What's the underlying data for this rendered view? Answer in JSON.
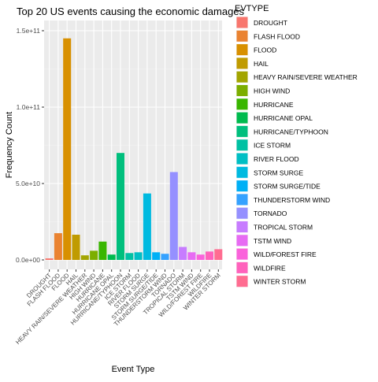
{
  "chart_data": {
    "type": "bar",
    "title": "Top 20 US events causing the economic damages",
    "xlabel": "Event Type",
    "ylabel": "Frequency Count",
    "legend_title": "EVTYPE",
    "legend_position": "right",
    "grid": true,
    "ylim": [
      0,
      150000000000
    ],
    "yticks": [
      {
        "value": 0,
        "label": "0.0e+00"
      },
      {
        "value": 50000000000,
        "label": "5.0e+10"
      },
      {
        "value": 100000000000,
        "label": "1.0e+11"
      },
      {
        "value": 150000000000,
        "label": "1.5e+11"
      }
    ],
    "categories": [
      "DROUGHT",
      "FLASH FLOOD",
      "FLOOD",
      "HAIL",
      "HEAVY RAIN/SEVERE WEATHER",
      "HIGH WIND",
      "HURRICANE",
      "HURRICANE OPAL",
      "HURRICANE/TYPHOON",
      "ICE STORM",
      "RIVER FLOOD",
      "STORM SURGE",
      "STORM SURGE/TIDE",
      "THUNDERSTORM WIND",
      "TORNADO",
      "TROPICAL STORM",
      "TSTM WIND",
      "WILD/FOREST FIRE",
      "WILDFIRE",
      "WINTER STORM"
    ],
    "values": [
      1000000000,
      17500000000,
      145000000000,
      16500000000,
      3000000000,
      6000000000,
      12000000000,
      3500000000,
      70000000000,
      4500000000,
      5000000000,
      43500000000,
      5000000000,
      4000000000,
      57500000000,
      8500000000,
      5000000000,
      3500000000,
      5500000000,
      7000000000
    ],
    "colors": [
      "#F8766D",
      "#EA8331",
      "#D89000",
      "#C09B00",
      "#A3A500",
      "#7CAE00",
      "#39B600",
      "#00BB4E",
      "#00BF7D",
      "#00C1A3",
      "#00BFC4",
      "#00BAE0",
      "#00B0F6",
      "#35A2FF",
      "#9590FF",
      "#C77CFF",
      "#E76BF3",
      "#FA62DB",
      "#FF62BC",
      "#FF6C91"
    ]
  }
}
